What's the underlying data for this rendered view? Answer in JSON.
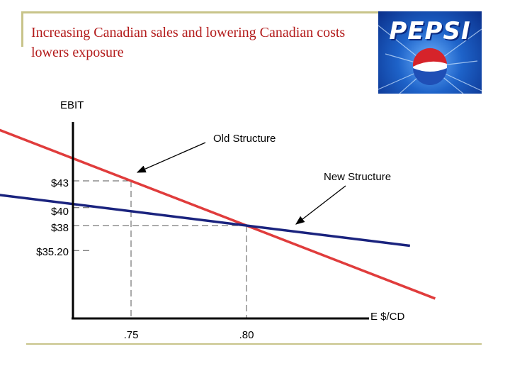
{
  "slide": {
    "title": "Increasing Canadian sales and lowering Canadian costs lowers exposure",
    "logo_text": "PEPSI"
  },
  "chart_data": {
    "type": "line",
    "ylabel": "EBIT",
    "xlabel": "E $/CD",
    "x_ticks": [
      ".75",
      ".80"
    ],
    "y_ticks": [
      "$43",
      "$40",
      "$38",
      "$35.20"
    ],
    "series": [
      {
        "name": "Old Structure",
        "color": "#e03c3c",
        "points": [
          {
            "x": 0.75,
            "y": 43
          },
          {
            "x": 0.8,
            "y": 38
          }
        ]
      },
      {
        "name": "New Structure",
        "color": "#1a237e",
        "points": [
          {
            "x": 0.75,
            "y": 39.6
          },
          {
            "x": 0.8,
            "y": 38
          }
        ]
      }
    ],
    "reference_lines": [
      {
        "x": 0.75,
        "y": 43
      },
      {
        "x": 0.8,
        "y": 38
      },
      {
        "y": 40
      },
      {
        "y": 35.2
      }
    ],
    "annotations": [
      "Old Structure",
      "New Structure"
    ]
  }
}
